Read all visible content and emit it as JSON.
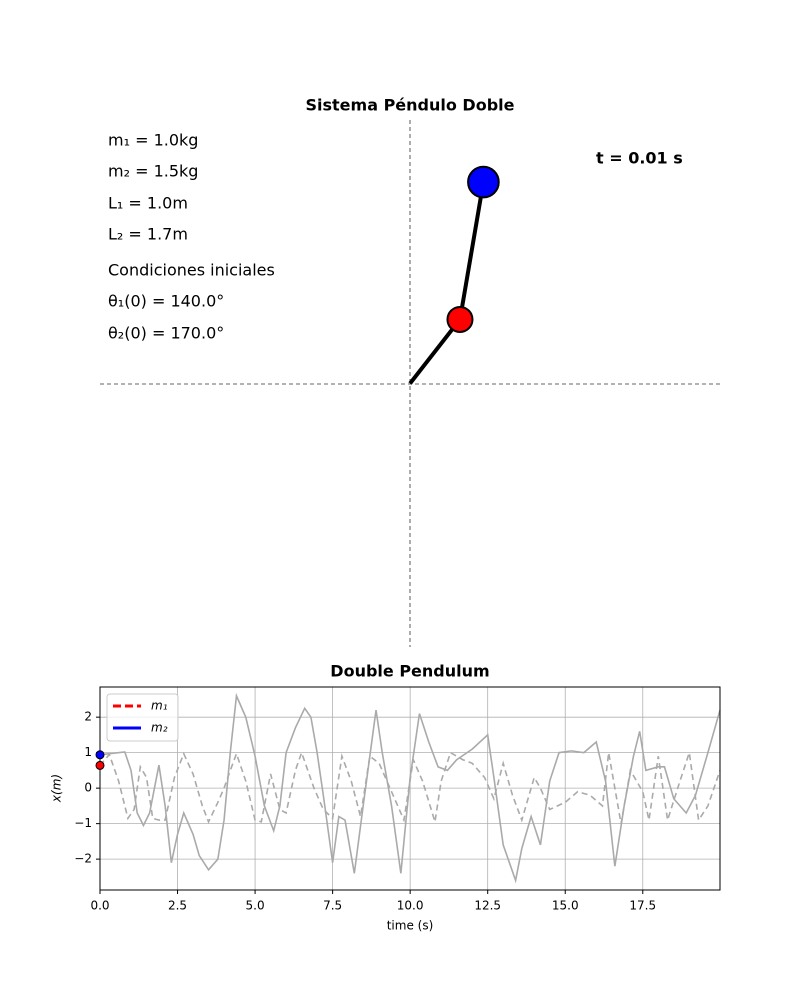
{
  "chart_data": [
    {
      "type": "pendulum",
      "title": "Sistema Péndulo Doble",
      "parameters": [
        "m₁ = 1.0kg",
        "m₂ = 1.5kg",
        "L₁ = 1.0m",
        "L₂ = 1.7m"
      ],
      "conditions_title": "Condiciones iniciales",
      "conditions": [
        "θ₁(0) = 140.0°",
        "θ₂(0) = 170.0°"
      ],
      "time_label": "t = 0.01 s",
      "x": [
        0,
        0.64,
        0.94
      ],
      "y": [
        0,
        0.82,
        2.58
      ],
      "masses": [
        1.0,
        1.5
      ],
      "colors": [
        "#ff0000",
        "#0000ff"
      ],
      "xlim": [
        -3.97,
        3.97
      ],
      "ylim": [
        -3.375,
        3.375
      ]
    },
    {
      "type": "line",
      "title": "Double Pendulum",
      "xlabel": "time (s)",
      "ylabel": "x(m)",
      "xlim": [
        0,
        19.99
      ],
      "ylim": [
        -2.87,
        2.85
      ],
      "xticks": [
        {
          "value": 0,
          "label": "0.0"
        },
        2.5,
        {
          "value": 5,
          "label": "5.0"
        },
        7.5,
        {
          "value": 10,
          "label": "10.0"
        },
        12.5,
        {
          "value": 15,
          "label": "15.0"
        },
        17.5
      ],
      "yticks": [
        {
          "value": -2,
          "label": "−2"
        },
        {
          "value": -1,
          "label": "−1"
        },
        0,
        1,
        2
      ],
      "grid": true,
      "legend": "upper left",
      "trace_color": "#aaaaaa",
      "series": [
        {
          "name": "m₁",
          "color": "#ff0000",
          "dash": true,
          "x": [
            0,
            0.3,
            0.6,
            0.9,
            1.1,
            1.3,
            1.5,
            1.7,
            1.9,
            2.1,
            2.4,
            2.7,
            3.0,
            3.3,
            3.5,
            3.8,
            4.0,
            4.2,
            4.4,
            4.7,
            5.0,
            5.2,
            5.5,
            5.8,
            6.0,
            6.3,
            6.5,
            6.9,
            7.2,
            7.5,
            7.8,
            8.1,
            8.4,
            8.7,
            9.0,
            9.4,
            9.8,
            10.1,
            10.4,
            10.8,
            11.0,
            11.3,
            11.7,
            12.0,
            12.4,
            12.7,
            13.0,
            13.3,
            13.6,
            14.0,
            14.2,
            14.5,
            15.0,
            15.4,
            15.8,
            16.2,
            16.4,
            16.8,
            17.1,
            17.5,
            17.7,
            18.0,
            18.3,
            18.7,
            19.0,
            19.3,
            19.6,
            19.99
          ],
          "values": [
            0.64,
            0.95,
            0.2,
            -0.85,
            -0.6,
            0.6,
            0.3,
            -0.85,
            -0.9,
            -0.9,
            0.3,
            0.97,
            0.4,
            -0.5,
            -0.95,
            -0.4,
            0.0,
            0.5,
            0.97,
            0.2,
            -0.9,
            -0.95,
            0.4,
            -0.6,
            -0.7,
            0.5,
            1.0,
            0.0,
            -0.6,
            -0.85,
            0.9,
            0.2,
            -0.8,
            0.9,
            0.7,
            -0.1,
            -0.9,
            0.8,
            0.2,
            -0.95,
            0.2,
            1.0,
            0.8,
            0.7,
            0.3,
            -0.3,
            0.7,
            -0.2,
            -0.9,
            0.3,
            0.0,
            -0.6,
            -0.4,
            -0.1,
            -0.2,
            -0.5,
            1.0,
            -1.0,
            0.5,
            -0.1,
            -0.9,
            0.9,
            -0.9,
            0.2,
            1.0,
            -0.9,
            -0.5,
            0.5
          ]
        },
        {
          "name": "m₂",
          "color": "#0000ff",
          "dash": false,
          "x": [
            0,
            0.3,
            0.8,
            1.0,
            1.2,
            1.4,
            1.6,
            1.9,
            2.1,
            2.3,
            2.5,
            2.7,
            3.0,
            3.2,
            3.5,
            3.8,
            4.0,
            4.2,
            4.4,
            4.7,
            5.0,
            5.3,
            5.6,
            5.8,
            6.0,
            6.3,
            6.6,
            6.8,
            7.0,
            7.2,
            7.5,
            7.7,
            7.9,
            8.2,
            8.5,
            8.9,
            9.1,
            9.4,
            9.7,
            10.0,
            10.3,
            10.6,
            10.9,
            11.2,
            11.5,
            12.0,
            12.5,
            12.7,
            13.0,
            13.4,
            13.6,
            13.9,
            14.2,
            14.5,
            14.8,
            15.2,
            15.6,
            16.0,
            16.3,
            16.6,
            16.9,
            17.2,
            17.4,
            17.6,
            18.0,
            18.2,
            18.5,
            18.9,
            19.2,
            19.6,
            19.99
          ],
          "values": [
            0.94,
            0.97,
            1.02,
            0.5,
            -0.7,
            -1.05,
            -0.7,
            0.65,
            -0.5,
            -2.1,
            -1.3,
            -0.7,
            -1.3,
            -1.9,
            -2.3,
            -2.0,
            -0.9,
            1.0,
            2.6,
            2.0,
            0.9,
            -0.5,
            -1.2,
            -0.5,
            1.0,
            1.7,
            2.25,
            2.0,
            1.0,
            -0.2,
            -2.1,
            -0.8,
            -0.9,
            -2.4,
            -0.4,
            2.2,
            1.0,
            -0.5,
            -2.4,
            0.3,
            2.1,
            1.3,
            0.6,
            0.5,
            0.8,
            1.1,
            1.5,
            0.3,
            -1.6,
            -2.6,
            -1.7,
            -0.8,
            -1.6,
            0.2,
            1.0,
            1.05,
            1.0,
            1.3,
            0.2,
            -2.2,
            -0.5,
            0.9,
            1.6,
            0.5,
            0.6,
            0.6,
            -0.3,
            -0.7,
            -0.2,
            1.0,
            2.2
          ]
        }
      ]
    }
  ]
}
